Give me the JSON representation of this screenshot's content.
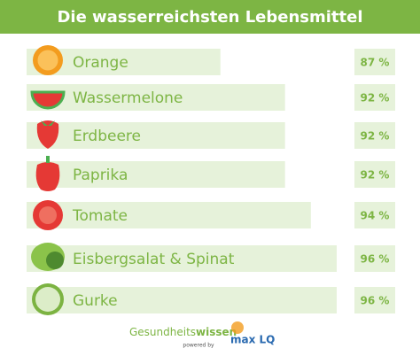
{
  "chart_data": {
    "type": "bar",
    "orientation": "horizontal",
    "title": "Die wasserreichsten Lebensmittel",
    "categories": [
      "Orange",
      "Wassermelone",
      "Erdbeere",
      "Paprika",
      "Tomate",
      "Eisbergsalat & Spinat",
      "Gurke"
    ],
    "values": [
      87,
      92,
      92,
      92,
      94,
      96,
      96
    ],
    "value_labels": [
      "87 %",
      "92 %",
      "92 %",
      "92 %",
      "94 %",
      "96 %",
      "96 %"
    ],
    "color": "#e6f2da",
    "xlim": [
      72,
      96
    ]
  },
  "footer": {
    "brand_light": "Gesundheits",
    "brand_bold": "wissen",
    "powered_by": "powered by",
    "partner": "max LQ"
  }
}
